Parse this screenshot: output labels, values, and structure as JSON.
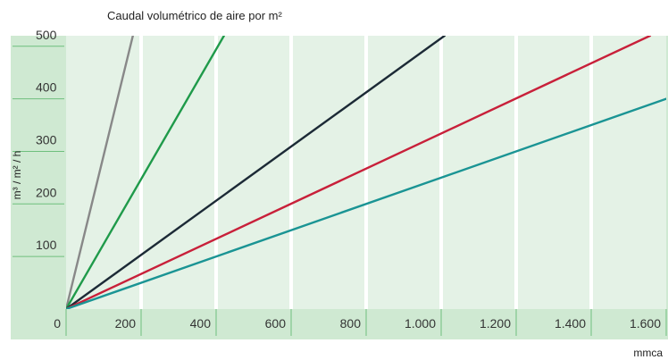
{
  "colors": {
    "panel": "#cfe9d2",
    "plot": "#e4f2e6",
    "grid": "#ffffff",
    "tick": "#6fbf7d",
    "zero_label": "#ffffff"
  },
  "chart_data": {
    "type": "line",
    "title": "Caudal volumétrico de aire por m²",
    "xlabel": "mmca",
    "ylabel": "m³ / m² / h",
    "xlim": [
      0,
      1600
    ],
    "ylim": [
      0,
      520
    ],
    "x_ticks": [
      0,
      200,
      400,
      600,
      800,
      1000,
      1200,
      1400,
      1600
    ],
    "x_tick_labels": [
      "0",
      "200",
      "400",
      "600",
      "800",
      "1.000",
      "1.200",
      "1.400",
      "1.600"
    ],
    "y_ticks": [
      100,
      200,
      300,
      400,
      500
    ],
    "y_tick_labels": [
      "100",
      "200",
      "300",
      "400",
      "500"
    ],
    "grid": true,
    "legend": "none",
    "series": [
      {
        "color": "#888888",
        "x": [
          0,
          178
        ],
        "y": [
          0,
          520
        ]
      },
      {
        "color": "#1f9a4a",
        "x": [
          0,
          421
        ],
        "y": [
          0,
          520
        ]
      },
      {
        "color": "#1c2a36",
        "x": [
          0,
          1009
        ],
        "y": [
          0,
          520
        ]
      },
      {
        "color": "#c8203a",
        "x": [
          0,
          1557
        ],
        "y": [
          0,
          520
        ]
      },
      {
        "color": "#1a9494",
        "x": [
          0,
          1600
        ],
        "y": [
          0,
          400
        ]
      }
    ]
  }
}
